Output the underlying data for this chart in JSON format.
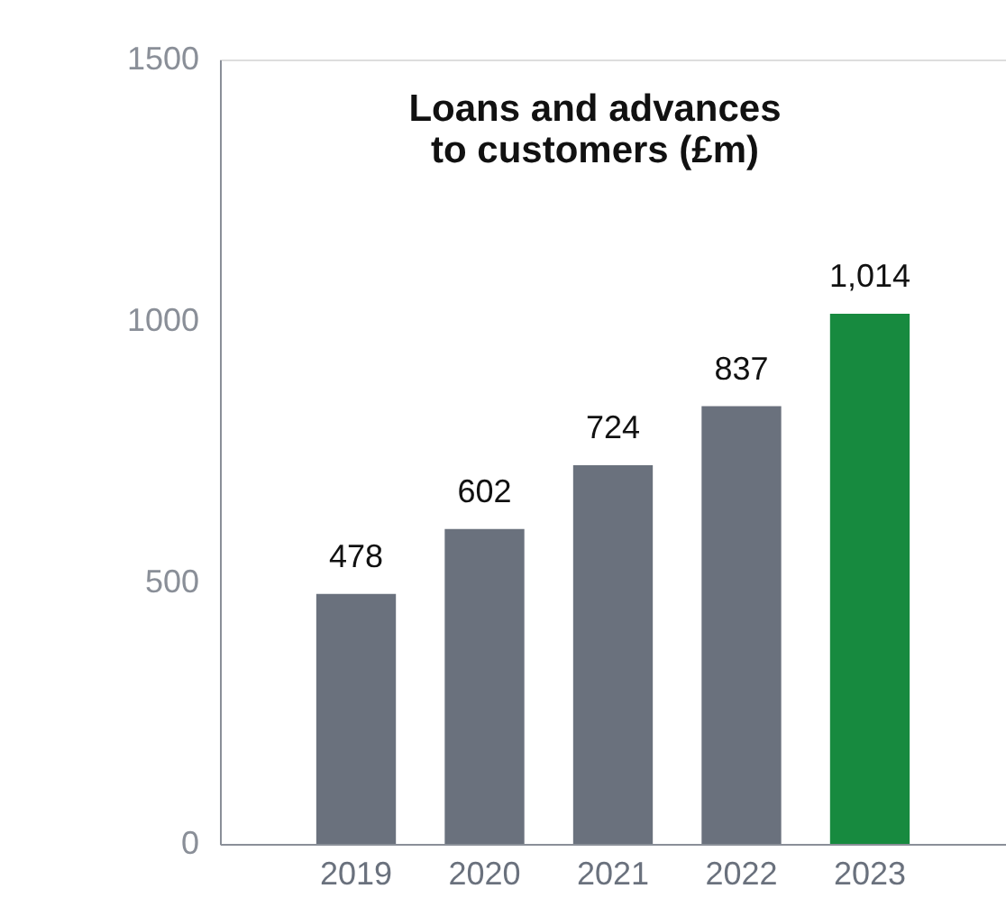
{
  "chart_data": {
    "type": "bar",
    "title": [
      "Loans and advances",
      "to customers (£m)"
    ],
    "categories": [
      "2019",
      "2020",
      "2021",
      "2022",
      "2023"
    ],
    "values": [
      478,
      602,
      724,
      837,
      1014
    ],
    "colors": [
      "#6a717d",
      "#6a717d",
      "#6a717d",
      "#6a717d",
      "#178a3f"
    ],
    "value_labels": [
      "478",
      "602",
      "724",
      "837",
      "1,014"
    ],
    "ylim": [
      0,
      1500
    ],
    "yticks": [
      0,
      500,
      1000,
      1500
    ],
    "grid": false
  }
}
